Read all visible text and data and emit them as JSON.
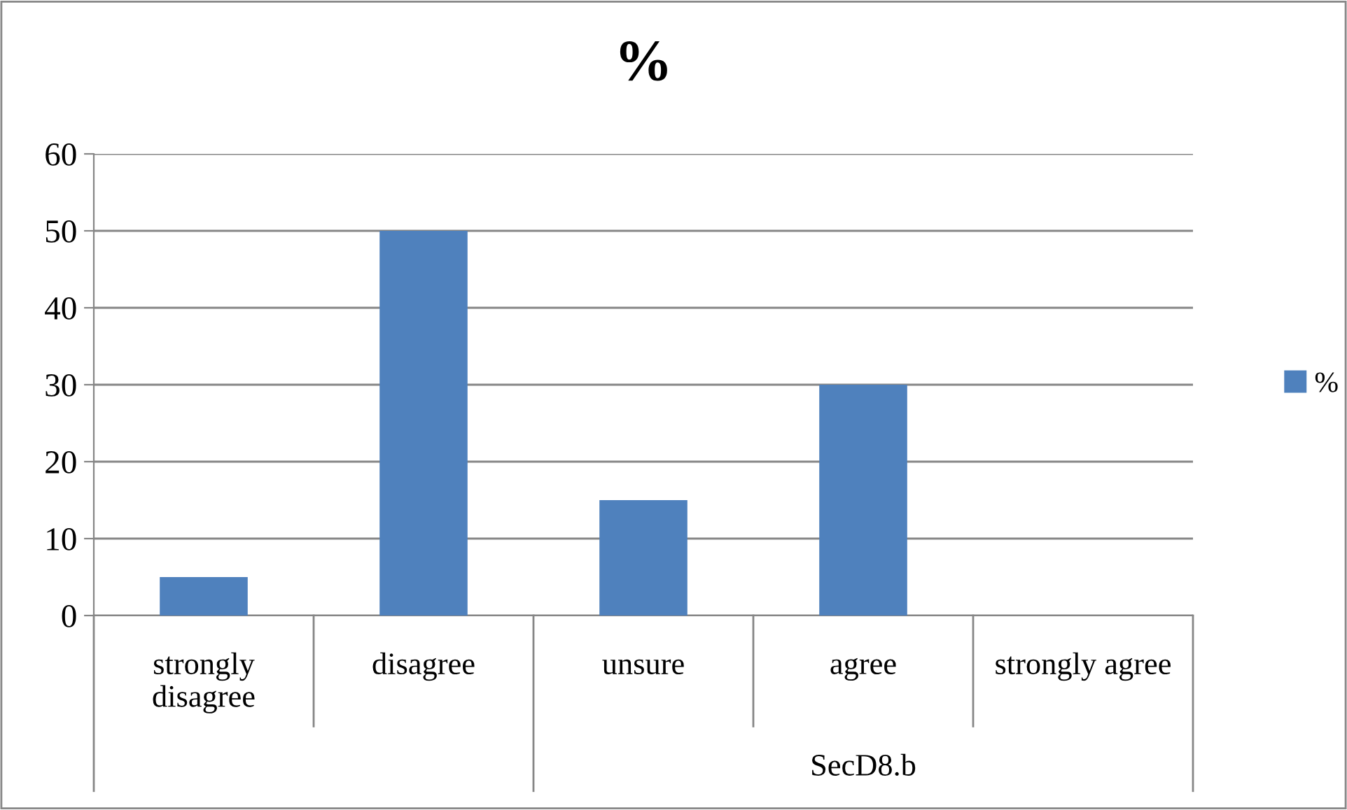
{
  "chart_data": {
    "type": "bar",
    "title": "%",
    "categories": [
      "strongly\ndisagree",
      "disagree",
      "unsure",
      "agree",
      "strongly agree"
    ],
    "series": [
      {
        "name": "%",
        "color": "#4f81bd",
        "values": [
          5,
          50,
          15,
          30,
          0
        ]
      }
    ],
    "annotations": [
      "SecD8.b"
    ],
    "ylim": [
      0,
      60
    ],
    "yticks": [
      0,
      10,
      20,
      30,
      40,
      50,
      60
    ],
    "grid": "y",
    "legend": "right"
  }
}
